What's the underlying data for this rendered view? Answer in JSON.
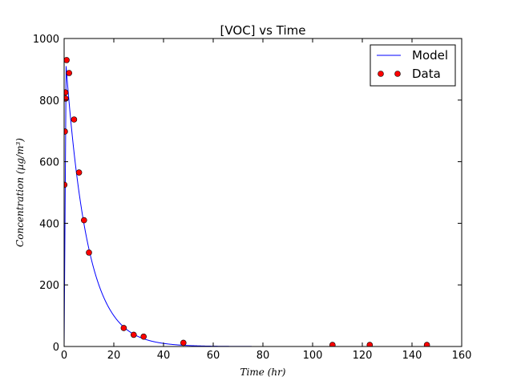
{
  "chart_data": {
    "type": "line",
    "title": "[VOC] vs Time",
    "xlabel": "Time (hr)",
    "ylabel": "Concentration (µg/m³)",
    "xlim": [
      0,
      160
    ],
    "ylim": [
      0,
      1000
    ],
    "xticks": [
      0,
      20,
      40,
      60,
      80,
      100,
      120,
      140,
      160
    ],
    "yticks": [
      0,
      200,
      400,
      600,
      800,
      1000
    ],
    "grid": false,
    "legend": {
      "placement": "top-right"
    },
    "series": [
      {
        "name": "Model",
        "kind": "line",
        "color": "#0000ff",
        "peak": {
          "x": 0.8,
          "y": 910
        },
        "decay_rate": 0.115,
        "x": [
          0,
          0.2,
          0.4,
          0.6,
          0.8,
          1,
          1.5,
          2,
          3,
          4,
          5,
          6,
          8,
          10,
          12,
          15,
          18,
          20,
          25,
          30,
          35,
          40,
          50,
          60,
          70,
          80,
          100,
          120,
          146
        ],
        "y": [
          0,
          340,
          640,
          830,
          910,
          890,
          840,
          793,
          708,
          631,
          563,
          502,
          399,
          317,
          252,
          178,
          126,
          100,
          56,
          31,
          18,
          10,
          3,
          1,
          0.3,
          0.1,
          0,
          0,
          0
        ]
      },
      {
        "name": "Data",
        "kind": "scatter",
        "color": "#ff0000",
        "x": [
          0.1,
          0.3,
          0.5,
          0.6,
          1,
          2,
          4,
          6,
          8,
          10,
          24,
          28,
          32,
          48,
          108,
          123,
          146
        ],
        "y": [
          525,
          698,
          825,
          805,
          930,
          888,
          737,
          565,
          410,
          305,
          60,
          38,
          32,
          12,
          5,
          5,
          5
        ]
      }
    ]
  }
}
